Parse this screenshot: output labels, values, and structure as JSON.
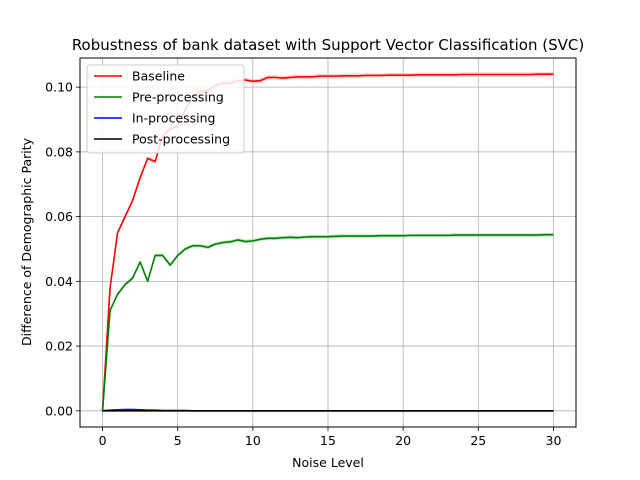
{
  "chart_data": {
    "type": "line",
    "title": "Robustness of bank dataset with Support Vector Classification (SVC)",
    "xlabel": "Noise Level",
    "ylabel": "Difference of Demographic Parity",
    "xlim": [
      -1.5,
      31.5
    ],
    "ylim": [
      -0.005,
      0.109
    ],
    "xticks": [
      0,
      5,
      10,
      15,
      20,
      25,
      30
    ],
    "yticks": [
      0.0,
      0.02,
      0.04,
      0.06,
      0.08,
      0.1
    ],
    "xtick_labels": [
      "0",
      "5",
      "10",
      "15",
      "20",
      "25",
      "30"
    ],
    "ytick_labels": [
      "0.00",
      "0.02",
      "0.04",
      "0.06",
      "0.08",
      "0.10"
    ],
    "grid": true,
    "legend_position": "upper-left",
    "x": [
      0,
      0.5,
      1,
      1.5,
      2,
      2.5,
      3,
      3.5,
      4,
      4.5,
      5,
      5.5,
      6,
      6.5,
      7,
      7.5,
      8,
      8.5,
      9,
      9.5,
      10,
      10.5,
      11,
      11.5,
      12,
      12.5,
      13,
      13.5,
      14,
      14.5,
      15,
      15.5,
      16,
      16.5,
      17,
      17.5,
      18,
      18.5,
      19,
      19.5,
      20,
      20.5,
      21,
      21.5,
      22,
      22.5,
      23,
      23.5,
      24,
      24.5,
      25,
      25.5,
      26,
      26.5,
      27,
      27.5,
      28,
      28.5,
      29,
      29.5,
      30
    ],
    "series": [
      {
        "name": "Baseline",
        "color": "#ff0000",
        "band_color": "#ffc0c0",
        "values": [
          0.0,
          0.038,
          0.055,
          0.06,
          0.065,
          0.072,
          0.078,
          0.077,
          0.085,
          0.087,
          0.088,
          0.093,
          0.097,
          0.0985,
          0.099,
          0.1005,
          0.1012,
          0.1012,
          0.102,
          0.1022,
          0.1018,
          0.102,
          0.103,
          0.103,
          0.1028,
          0.103,
          0.1032,
          0.1032,
          0.1032,
          0.1034,
          0.1034,
          0.1034,
          0.1035,
          0.1035,
          0.1035,
          0.1036,
          0.1036,
          0.1036,
          0.1037,
          0.1037,
          0.1037,
          0.1037,
          0.1038,
          0.1038,
          0.1038,
          0.1038,
          0.1038,
          0.1038,
          0.1039,
          0.1039,
          0.1039,
          0.1039,
          0.1039,
          0.1039,
          0.1039,
          0.1039,
          0.1039,
          0.1039,
          0.104,
          0.104,
          0.104
        ]
      },
      {
        "name": "Pre-processing",
        "color": "#008000",
        "band_color": "#a8d8a8",
        "values": [
          0.0,
          0.031,
          0.036,
          0.039,
          0.041,
          0.046,
          0.04,
          0.048,
          0.048,
          0.045,
          0.048,
          0.05,
          0.051,
          0.051,
          0.0505,
          0.0515,
          0.052,
          0.0522,
          0.0528,
          0.0523,
          0.0525,
          0.053,
          0.0533,
          0.0533,
          0.0535,
          0.0536,
          0.0535,
          0.0537,
          0.0538,
          0.0538,
          0.0538,
          0.0539,
          0.054,
          0.054,
          0.054,
          0.054,
          0.054,
          0.0541,
          0.0541,
          0.0541,
          0.0541,
          0.0542,
          0.0542,
          0.0542,
          0.0542,
          0.0542,
          0.0542,
          0.0543,
          0.0543,
          0.0543,
          0.0543,
          0.0543,
          0.0543,
          0.0543,
          0.0543,
          0.0543,
          0.0543,
          0.0543,
          0.0543,
          0.0544,
          0.0544
        ]
      },
      {
        "name": "In-processing",
        "color": "#0000ff",
        "band_color": "#b0b0ff",
        "values": [
          0.0,
          0.0002,
          0.0003,
          0.0004,
          0.0004,
          0.0003,
          0.0002,
          0.0002,
          0.0001,
          0.0001,
          0.0001,
          0.0001,
          0.0,
          0.0,
          0.0,
          0.0,
          0.0,
          0.0,
          0.0,
          0.0,
          0.0,
          0.0,
          0.0,
          0.0,
          0.0,
          0.0,
          0.0,
          0.0,
          0.0,
          0.0,
          0.0,
          0.0,
          0.0,
          0.0,
          0.0,
          0.0,
          0.0,
          0.0,
          0.0,
          0.0,
          0.0,
          0.0,
          0.0,
          0.0,
          0.0,
          0.0,
          0.0,
          0.0,
          0.0,
          0.0,
          0.0,
          0.0,
          0.0,
          0.0,
          0.0,
          0.0,
          0.0,
          0.0,
          0.0,
          0.0,
          0.0
        ]
      },
      {
        "name": "Post-processing",
        "color": "#000000",
        "band_color": "#bbbbbb",
        "values": [
          0.0,
          0.0,
          0.0,
          0.0,
          0.0,
          0.0,
          0.0,
          0.0,
          0.0,
          0.0,
          0.0,
          0.0,
          0.0,
          0.0,
          0.0,
          0.0,
          0.0,
          0.0,
          0.0,
          0.0,
          0.0,
          0.0,
          0.0,
          0.0,
          0.0,
          0.0,
          0.0,
          0.0,
          0.0,
          0.0,
          0.0,
          0.0,
          0.0,
          0.0,
          0.0,
          0.0,
          0.0,
          0.0,
          0.0,
          0.0,
          0.0,
          0.0,
          0.0,
          0.0,
          0.0,
          0.0,
          0.0,
          0.0,
          0.0,
          0.0,
          0.0,
          0.0,
          0.0,
          0.0,
          0.0,
          0.0,
          0.0,
          0.0,
          0.0,
          0.0,
          0.0
        ]
      }
    ]
  }
}
